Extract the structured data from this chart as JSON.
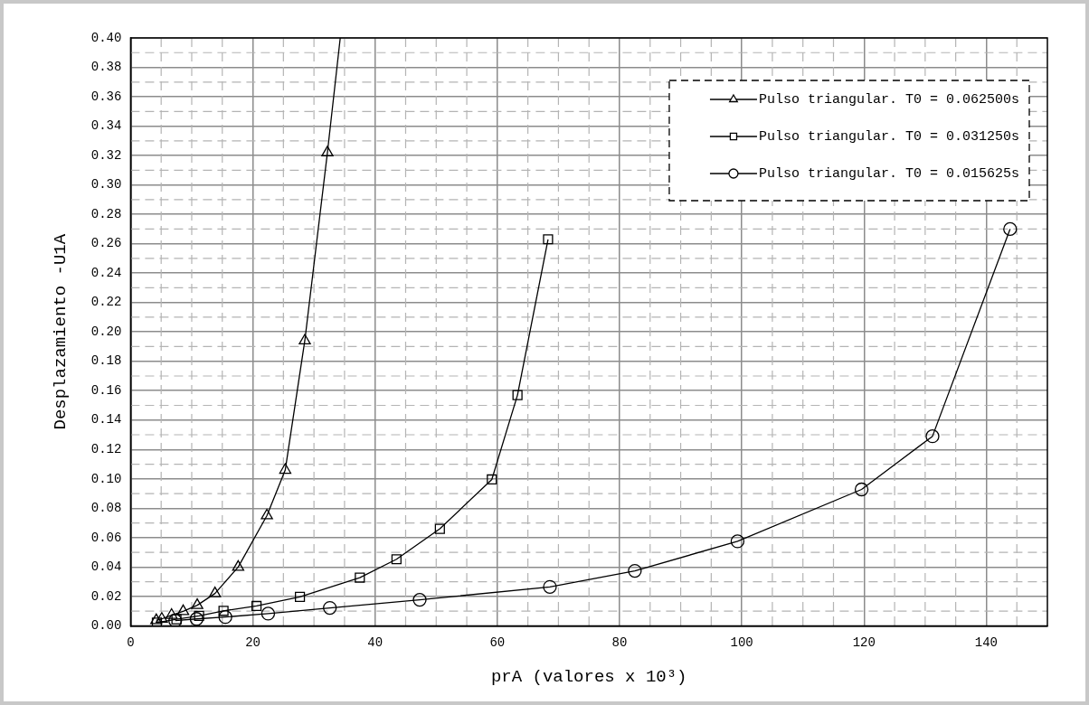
{
  "chart_data": {
    "type": "line",
    "xlabel": "prA (valores x 10³)",
    "ylabel": "Desplazamiento -U1A",
    "xlim": [
      0,
      150
    ],
    "xticks": [
      0,
      20,
      40,
      60,
      80,
      100,
      120,
      140
    ],
    "ylim": [
      0,
      0.4
    ],
    "yticks": [
      {
        "value": 0,
        "label": "0.00"
      },
      {
        "value": 0.02,
        "label": "0.02"
      },
      {
        "value": 0.04,
        "label": "0.04"
      },
      {
        "value": 0.06,
        "label": "0.06"
      },
      {
        "value": 0.08,
        "label": "0.08"
      },
      {
        "value": 0.1,
        "label": "0.10"
      },
      {
        "value": 0.12,
        "label": "0.12"
      },
      {
        "value": 0.14,
        "label": "0.14"
      },
      {
        "value": 0.16,
        "label": "0.16"
      },
      {
        "value": 0.18,
        "label": "0.18"
      },
      {
        "value": 0.2,
        "label": "0.20"
      },
      {
        "value": 0.22,
        "label": "0.22"
      },
      {
        "value": 0.24,
        "label": "0.24"
      },
      {
        "value": 0.26,
        "label": "0.26"
      },
      {
        "value": 0.28,
        "label": "0.28"
      },
      {
        "value": 0.3,
        "label": "0.30"
      },
      {
        "value": 0.32,
        "label": "0.32"
      },
      {
        "value": 0.34,
        "label": "0.34"
      },
      {
        "value": 0.36,
        "label": "0.36"
      },
      {
        "value": 0.38,
        "label": "0.38"
      },
      {
        "value": 0.4,
        "label": "0.40"
      }
    ],
    "grid": true,
    "legend": "top right",
    "line_style": "solid",
    "series": [
      {
        "name": "Pulso triangular. T0 = 0.062500s",
        "color": "#000000",
        "marker": "triangle",
        "x": [
          4.2,
          5.1,
          6.7,
          8.6,
          10.9,
          13.8,
          17.6,
          22.3,
          25.3,
          28.5,
          32.2,
          34.3
        ],
        "values": [
          0.0037,
          0.0047,
          0.0073,
          0.0099,
          0.014,
          0.022,
          0.04,
          0.075,
          0.106,
          0.194,
          0.322,
          0.4
        ]
      },
      {
        "name": "Pulso triangular. T0 = 0.031250s",
        "color": "#000000",
        "marker": "square",
        "x": [
          4.3,
          7.5,
          11.2,
          15.2,
          20.6,
          27.7,
          37.5,
          43.5,
          50.6,
          59.1,
          63.3,
          68.3
        ],
        "values": [
          0.0022,
          0.0045,
          0.0068,
          0.0102,
          0.0135,
          0.0197,
          0.0328,
          0.0453,
          0.066,
          0.0996,
          0.157,
          0.263
        ]
      },
      {
        "name": "Pulso triangular. T0 = 0.015625s",
        "color": "#000000",
        "marker": "circle",
        "x": [
          7.3,
          10.8,
          15.5,
          22.5,
          32.6,
          47.3,
          68.6,
          82.5,
          99.3,
          119.6,
          131.2,
          143.9
        ],
        "values": [
          0.0035,
          0.0047,
          0.006,
          0.0083,
          0.0122,
          0.0177,
          0.0265,
          0.0374,
          0.0575,
          0.0928,
          0.129,
          0.27
        ]
      }
    ]
  }
}
